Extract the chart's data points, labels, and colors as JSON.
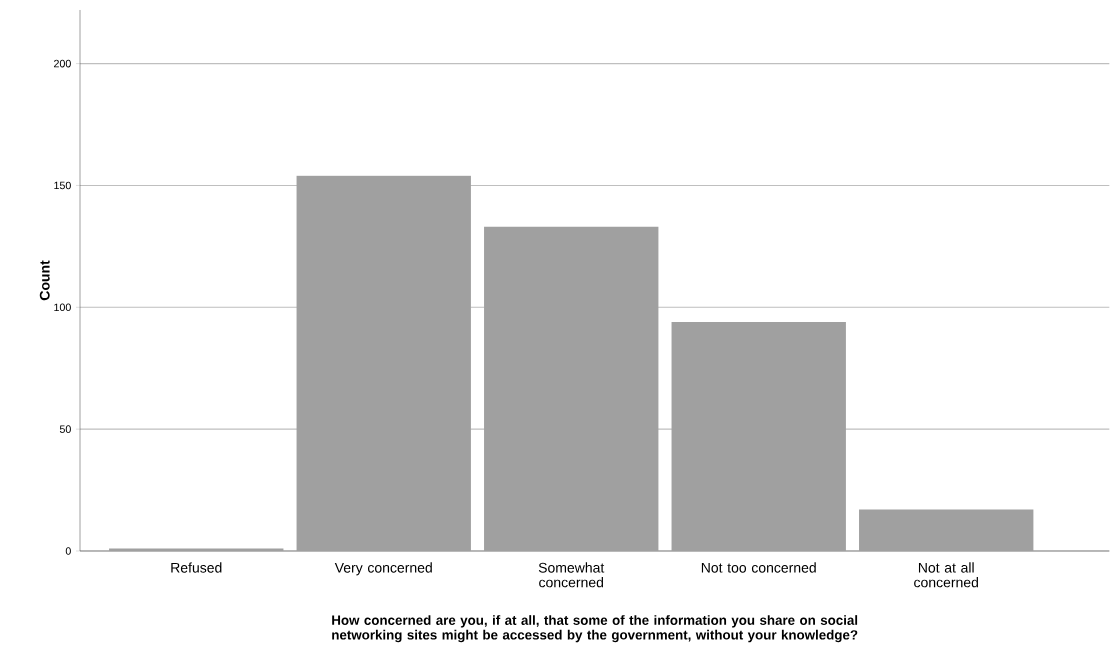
{
  "chart_data": {
    "type": "bar",
    "xlabel": "How concerned are you, if at all, that some of the information you share on social networking sites might be accessed by the government, without your knowledge?",
    "ylabel": "Count",
    "categories": [
      "Refused",
      "Very concerned",
      "Somewhat concerned",
      "Not too concerned",
      "Not at all concerned"
    ],
    "values": [
      1,
      154,
      133,
      94,
      17
    ],
    "color": "#a0a0a0",
    "ylim": [
      0,
      222
    ],
    "yticks": [
      0,
      50,
      100,
      150,
      200
    ],
    "grid": "y"
  }
}
